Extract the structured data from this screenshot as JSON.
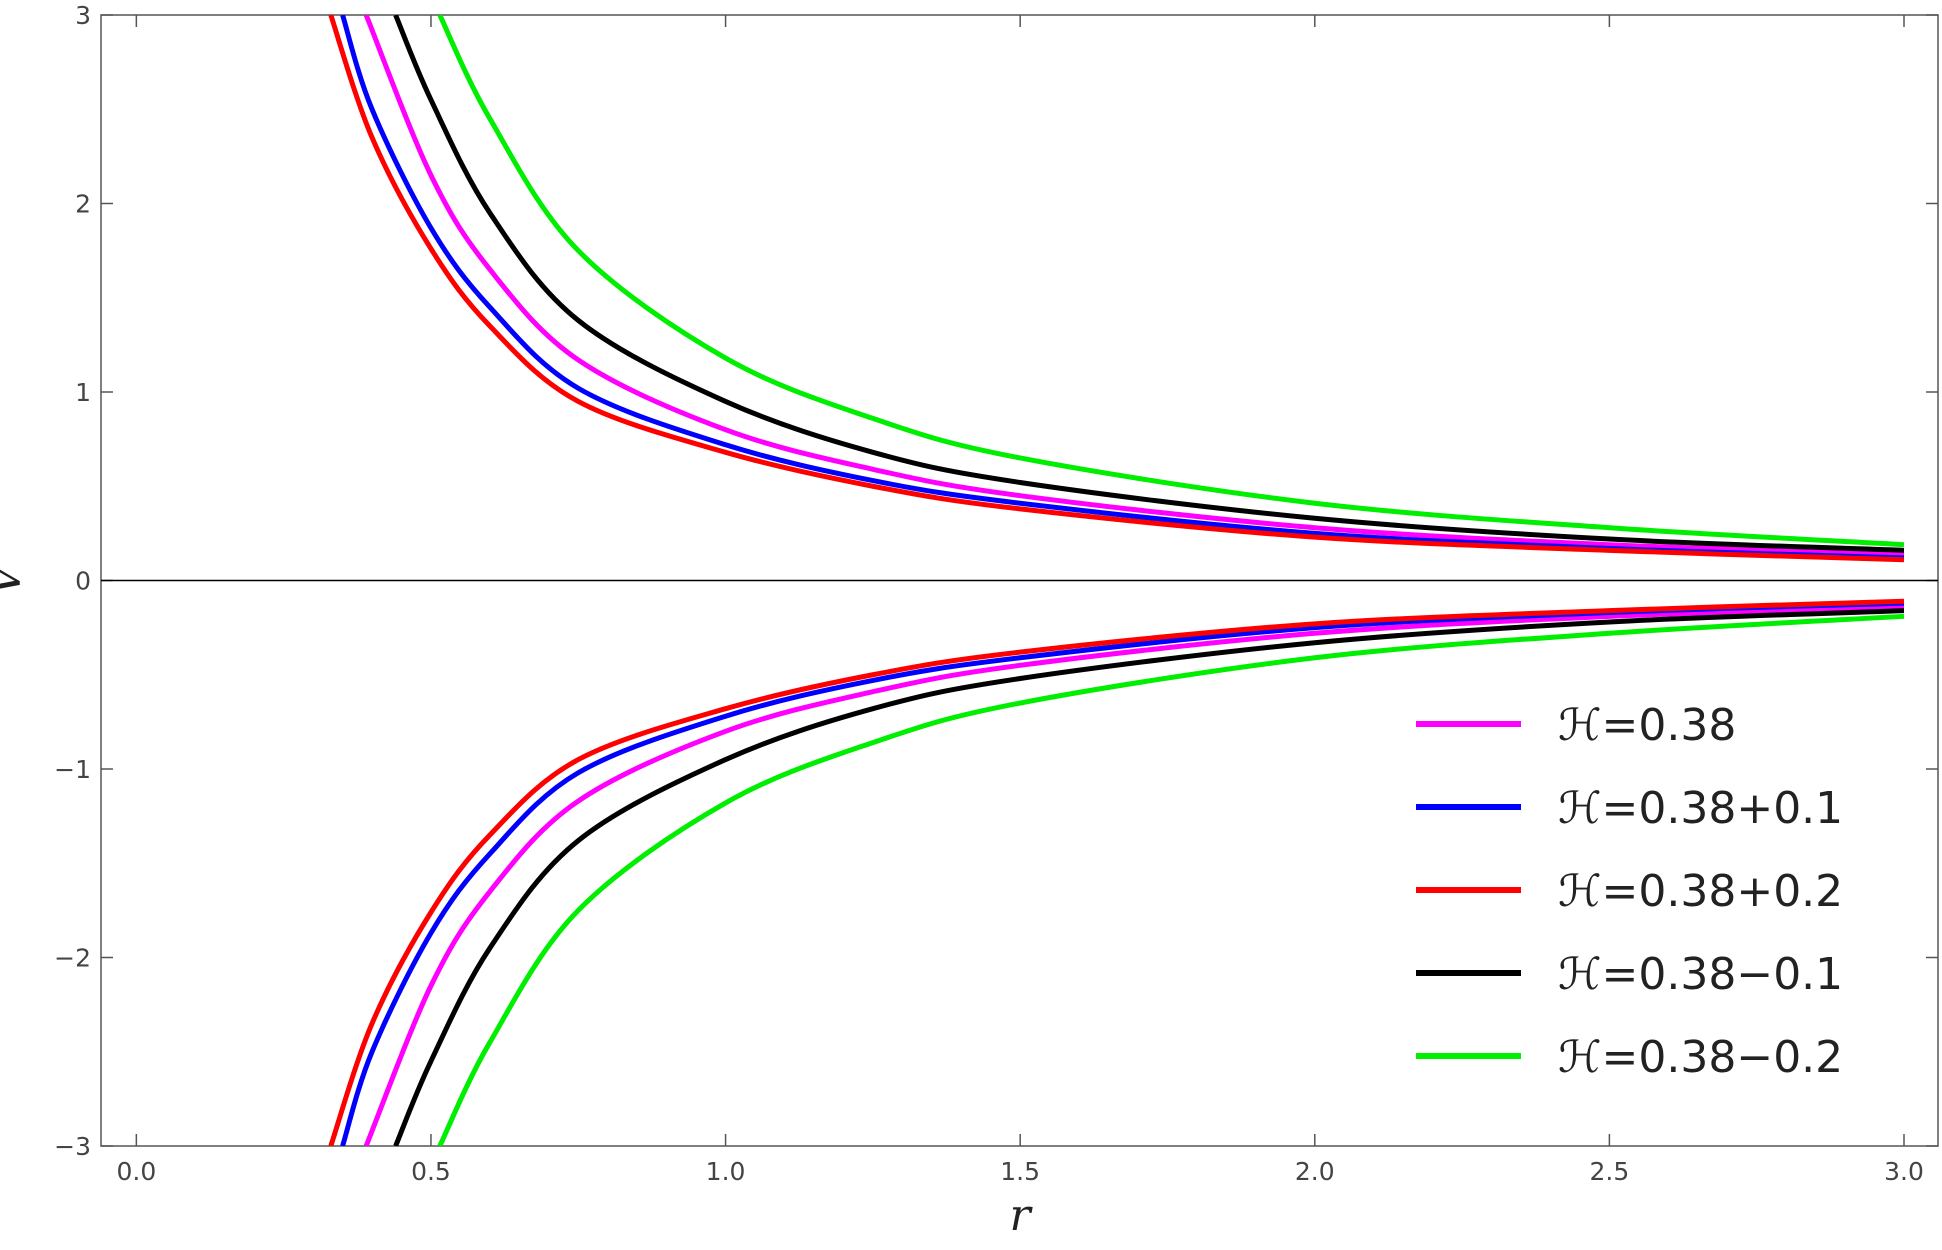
{
  "chart_data": {
    "type": "line",
    "x_label": "r",
    "y_label": "V",
    "xlim": [
      -0.06,
      3.0
    ],
    "ylim": [
      -3,
      3
    ],
    "xticks": [
      {
        "value": 0,
        "label": "0.0"
      },
      0.5,
      {
        "value": 1,
        "label": "1.0"
      },
      1.5,
      {
        "value": 2,
        "label": "2.0"
      },
      2.5,
      {
        "value": 3,
        "label": "3.0"
      }
    ],
    "yticks": [
      {
        "value": -3,
        "label": "−3"
      },
      {
        "value": -2,
        "label": "−2"
      },
      {
        "value": -1,
        "label": "−1"
      },
      0,
      1,
      2,
      3
    ],
    "zero_line": true,
    "legend_position": "lower right",
    "series": [
      {
        "name": "ℋ=0.38",
        "color": "#ff00ff",
        "x": [
          0.39,
          0.5,
          0.6,
          0.75,
          1.0,
          1.25,
          1.5,
          2.0,
          2.5,
          3.0
        ],
        "values": [
          3,
          2.15,
          1.65,
          1.17,
          0.8,
          0.59,
          0.45,
          0.28,
          0.19,
          0.14
        ],
        "lower_values": [
          -3,
          -2.15,
          -1.65,
          -1.17,
          -0.8,
          -0.59,
          -0.45,
          -0.28,
          -0.19,
          -0.14
        ]
      },
      {
        "name": "ℋ=0.38+0.1",
        "color": "#0000ff",
        "x": [
          0.35,
          0.4,
          0.5,
          0.6,
          0.75,
          1.0,
          1.25,
          1.5,
          2.0,
          2.5,
          3.0
        ],
        "values": [
          3,
          2.5,
          1.87,
          1.45,
          1.02,
          0.72,
          0.53,
          0.41,
          0.25,
          0.17,
          0.12
        ],
        "lower_values": [
          -3,
          -2.5,
          -1.87,
          -1.45,
          -1.02,
          -0.72,
          -0.53,
          -0.41,
          -0.25,
          -0.17,
          -0.12
        ]
      },
      {
        "name": "ℋ=0.38+0.2",
        "color": "#ff0000",
        "x": [
          0.33,
          0.4,
          0.5,
          0.6,
          0.75,
          1.0,
          1.25,
          1.5,
          2.0,
          2.5,
          3.0
        ],
        "values": [
          3,
          2.35,
          1.76,
          1.35,
          0.95,
          0.68,
          0.5,
          0.38,
          0.23,
          0.16,
          0.11
        ],
        "lower_values": [
          -3,
          -2.35,
          -1.76,
          -1.35,
          -0.95,
          -0.68,
          -0.5,
          -0.38,
          -0.23,
          -0.16,
          -0.11
        ]
      },
      {
        "name": "ℋ=0.38−0.1",
        "color": "#000000",
        "x": [
          0.44,
          0.5,
          0.6,
          0.75,
          1.0,
          1.25,
          1.5,
          2.0,
          2.5,
          3.0
        ],
        "values": [
          3,
          2.55,
          1.95,
          1.38,
          0.95,
          0.68,
          0.52,
          0.33,
          0.22,
          0.16
        ],
        "lower_values": [
          -3,
          -2.55,
          -1.95,
          -1.38,
          -0.95,
          -0.68,
          -0.52,
          -0.33,
          -0.22,
          -0.16
        ]
      },
      {
        "name": "ℋ=0.38−0.2",
        "color": "#00ee00",
        "x": [
          0.515,
          0.6,
          0.75,
          1.0,
          1.25,
          1.5,
          2.0,
          2.5,
          3.0
        ],
        "values": [
          3,
          2.45,
          1.75,
          1.18,
          0.86,
          0.65,
          0.41,
          0.28,
          0.19
        ],
        "lower_values": [
          -3,
          -2.45,
          -1.75,
          -1.18,
          -0.86,
          -0.65,
          -0.41,
          -0.28,
          -0.19
        ]
      }
    ]
  }
}
